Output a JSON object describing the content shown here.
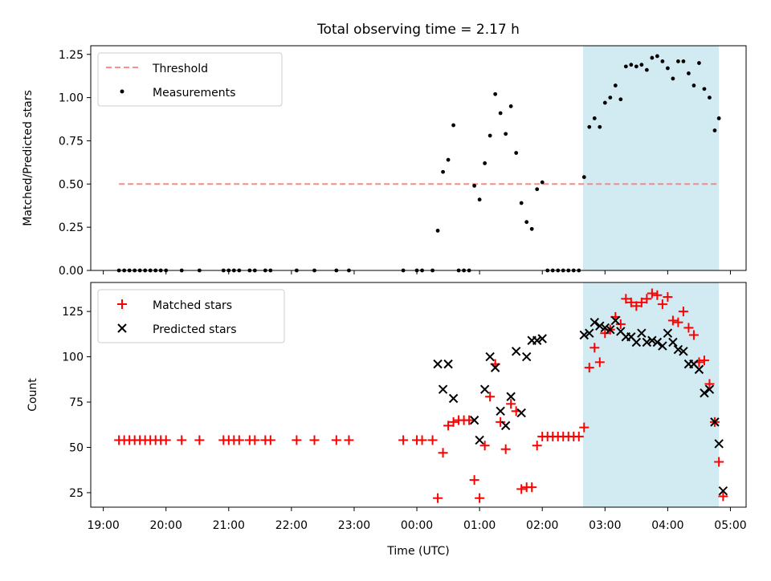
{
  "chart_data": {
    "type": "scatter",
    "title": "Total observing time = 2.17 h",
    "xlabel": "Time (UTC)",
    "x_ticks": [
      "19:00",
      "20:00",
      "21:00",
      "22:00",
      "23:00",
      "00:00",
      "01:00",
      "02:00",
      "03:00",
      "04:00",
      "05:00"
    ],
    "shaded_span": {
      "start": "02:39",
      "end": "04:49",
      "color": "#add8e6"
    },
    "panels": [
      {
        "ylabel": "Matched/Predicted stars",
        "ylim": [
          0,
          1.3
        ],
        "y_ticks": [
          "0.00",
          "0.25",
          "0.50",
          "0.75",
          "1.00",
          "1.25"
        ],
        "y_tick_values": [
          0,
          0.25,
          0.5,
          0.75,
          1.0,
          1.25
        ],
        "legend": {
          "placement": "upper-left",
          "entries": [
            {
              "label": "Threshold",
              "marker": "dashed-line",
              "color": "#ff7f7f"
            },
            {
              "label": "Measurements",
              "marker": "dot",
              "color": "#000000"
            }
          ]
        },
        "threshold": {
          "name": "Threshold",
          "value": 0.5,
          "x_range": [
            "19:15",
            "04:49"
          ],
          "style": "dashed",
          "color": "#ff7f7f"
        },
        "series": [
          {
            "name": "Measurements",
            "marker": "dot",
            "color": "#000000",
            "points": [
              [
                "19:15",
                0
              ],
              [
                "19:20",
                0
              ],
              [
                "19:25",
                0
              ],
              [
                "19:30",
                0
              ],
              [
                "19:35",
                0
              ],
              [
                "19:40",
                0
              ],
              [
                "19:45",
                0
              ],
              [
                "19:50",
                0
              ],
              [
                "19:55",
                0
              ],
              [
                "20:00",
                0
              ],
              [
                "20:15",
                0
              ],
              [
                "20:32",
                0
              ],
              [
                "20:55",
                0
              ],
              [
                "21:00",
                0
              ],
              [
                "21:05",
                0
              ],
              [
                "21:10",
                0
              ],
              [
                "21:20",
                0
              ],
              [
                "21:25",
                0
              ],
              [
                "21:35",
                0
              ],
              [
                "21:40",
                0
              ],
              [
                "22:05",
                0
              ],
              [
                "22:22",
                0
              ],
              [
                "22:43",
                0
              ],
              [
                "22:55",
                0
              ],
              [
                "23:47",
                0
              ],
              [
                "00:00",
                0
              ],
              [
                "00:05",
                0
              ],
              [
                "00:15",
                0
              ],
              [
                "00:20",
                0.23
              ],
              [
                "00:25",
                0.57
              ],
              [
                "00:30",
                0.64
              ],
              [
                "00:35",
                0.84
              ],
              [
                "00:40",
                0
              ],
              [
                "00:45",
                0
              ],
              [
                "00:50",
                0
              ],
              [
                "00:55",
                0.49
              ],
              [
                "01:00",
                0.41
              ],
              [
                "01:05",
                0.62
              ],
              [
                "01:10",
                0.78
              ],
              [
                "01:15",
                1.02
              ],
              [
                "01:20",
                0.91
              ],
              [
                "01:25",
                0.79
              ],
              [
                "01:30",
                0.95
              ],
              [
                "01:35",
                0.68
              ],
              [
                "01:40",
                0.39
              ],
              [
                "01:45",
                0.28
              ],
              [
                "01:50",
                0.24
              ],
              [
                "01:55",
                0.47
              ],
              [
                "02:00",
                0.51
              ],
              [
                "02:05",
                0
              ],
              [
                "02:10",
                0
              ],
              [
                "02:15",
                0
              ],
              [
                "02:20",
                0
              ],
              [
                "02:25",
                0
              ],
              [
                "02:30",
                0
              ],
              [
                "02:35",
                0
              ],
              [
                "02:40",
                0.54
              ],
              [
                "02:45",
                0.83
              ],
              [
                "02:50",
                0.88
              ],
              [
                "02:55",
                0.83
              ],
              [
                "03:00",
                0.97
              ],
              [
                "03:05",
                1.0
              ],
              [
                "03:10",
                1.07
              ],
              [
                "03:15",
                0.99
              ],
              [
                "03:20",
                1.18
              ],
              [
                "03:25",
                1.19
              ],
              [
                "03:30",
                1.18
              ],
              [
                "03:35",
                1.19
              ],
              [
                "03:40",
                1.16
              ],
              [
                "03:45",
                1.23
              ],
              [
                "03:50",
                1.24
              ],
              [
                "03:55",
                1.21
              ],
              [
                "04:00",
                1.17
              ],
              [
                "04:05",
                1.11
              ],
              [
                "04:10",
                1.21
              ],
              [
                "04:15",
                1.21
              ],
              [
                "04:20",
                1.14
              ],
              [
                "04:25",
                1.07
              ],
              [
                "04:30",
                1.2
              ],
              [
                "04:35",
                1.05
              ],
              [
                "04:40",
                1.0
              ],
              [
                "04:45",
                0.81
              ],
              [
                "04:49",
                0.88
              ]
            ]
          }
        ]
      },
      {
        "ylabel": "Count",
        "ylim": [
          17,
          141
        ],
        "y_ticks": [
          "25",
          "50",
          "75",
          "100",
          "125"
        ],
        "y_tick_values": [
          25,
          50,
          75,
          100,
          125
        ],
        "legend": {
          "placement": "upper-left",
          "entries": [
            {
              "label": "Matched stars",
              "marker": "plus",
              "color": "#ff0000"
            },
            {
              "label": "Predicted stars",
              "marker": "x",
              "color": "#000000"
            }
          ]
        },
        "series": [
          {
            "name": "Matched stars",
            "marker": "plus",
            "color": "#ff0000",
            "points": [
              [
                "19:15",
                54
              ],
              [
                "19:20",
                54
              ],
              [
                "19:25",
                54
              ],
              [
                "19:30",
                54
              ],
              [
                "19:35",
                54
              ],
              [
                "19:40",
                54
              ],
              [
                "19:45",
                54
              ],
              [
                "19:50",
                54
              ],
              [
                "19:55",
                54
              ],
              [
                "20:00",
                54
              ],
              [
                "20:15",
                54
              ],
              [
                "20:32",
                54
              ],
              [
                "20:55",
                54
              ],
              [
                "21:00",
                54
              ],
              [
                "21:05",
                54
              ],
              [
                "21:10",
                54
              ],
              [
                "21:20",
                54
              ],
              [
                "21:25",
                54
              ],
              [
                "21:35",
                54
              ],
              [
                "21:40",
                54
              ],
              [
                "22:05",
                54
              ],
              [
                "22:22",
                54
              ],
              [
                "22:43",
                54
              ],
              [
                "22:55",
                54
              ],
              [
                "23:47",
                54
              ],
              [
                "00:00",
                54
              ],
              [
                "00:05",
                54
              ],
              [
                "00:15",
                54
              ],
              [
                "00:20",
                22
              ],
              [
                "00:25",
                47
              ],
              [
                "00:30",
                62
              ],
              [
                "00:35",
                64
              ],
              [
                "00:40",
                65
              ],
              [
                "00:45",
                65
              ],
              [
                "00:50",
                65
              ],
              [
                "00:55",
                32
              ],
              [
                "01:00",
                22
              ],
              [
                "01:05",
                51
              ],
              [
                "01:10",
                78
              ],
              [
                "01:15",
                96
              ],
              [
                "01:20",
                64
              ],
              [
                "01:25",
                49
              ],
              [
                "01:30",
                74
              ],
              [
                "01:35",
                70
              ],
              [
                "01:40",
                27
              ],
              [
                "01:45",
                28
              ],
              [
                "01:50",
                28
              ],
              [
                "01:55",
                51
              ],
              [
                "02:00",
                56
              ],
              [
                "02:05",
                56
              ],
              [
                "02:10",
                56
              ],
              [
                "02:15",
                56
              ],
              [
                "02:20",
                56
              ],
              [
                "02:25",
                56
              ],
              [
                "02:30",
                56
              ],
              [
                "02:35",
                56
              ],
              [
                "02:40",
                61
              ],
              [
                "02:45",
                94
              ],
              [
                "02:50",
                105
              ],
              [
                "02:55",
                97
              ],
              [
                "03:00",
                113
              ],
              [
                "03:05",
                115
              ],
              [
                "03:10",
                122
              ],
              [
                "03:15",
                118
              ],
              [
                "03:20",
                132
              ],
              [
                "03:25",
                130
              ],
              [
                "03:30",
                128
              ],
              [
                "03:35",
                130
              ],
              [
                "03:40",
                132
              ],
              [
                "03:45",
                135
              ],
              [
                "03:50",
                134
              ],
              [
                "03:55",
                129
              ],
              [
                "04:00",
                133
              ],
              [
                "04:05",
                120
              ],
              [
                "04:10",
                119
              ],
              [
                "04:15",
                125
              ],
              [
                "04:20",
                116
              ],
              [
                "04:25",
                112
              ],
              [
                "04:30",
                97
              ],
              [
                "04:35",
                98
              ],
              [
                "04:40",
                85
              ],
              [
                "04:45",
                64
              ],
              [
                "04:49",
                42
              ],
              [
                "04:53",
                23
              ]
            ]
          },
          {
            "name": "Predicted stars",
            "marker": "x",
            "color": "#000000",
            "points": [
              [
                "00:20",
                96
              ],
              [
                "00:25",
                82
              ],
              [
                "00:30",
                96
              ],
              [
                "00:35",
                77
              ],
              [
                "00:55",
                65
              ],
              [
                "01:00",
                54
              ],
              [
                "01:05",
                82
              ],
              [
                "01:10",
                100
              ],
              [
                "01:15",
                94
              ],
              [
                "01:20",
                70
              ],
              [
                "01:25",
                62
              ],
              [
                "01:30",
                78
              ],
              [
                "01:35",
                103
              ],
              [
                "01:40",
                69
              ],
              [
                "01:45",
                100
              ],
              [
                "01:50",
                109
              ],
              [
                "01:55",
                109
              ],
              [
                "02:00",
                110
              ],
              [
                "02:40",
                112
              ],
              [
                "02:45",
                113
              ],
              [
                "02:50",
                119
              ],
              [
                "02:55",
                117
              ],
              [
                "03:00",
                116
              ],
              [
                "03:05",
                115
              ],
              [
                "03:10",
                120
              ],
              [
                "03:15",
                114
              ],
              [
                "03:20",
                111
              ],
              [
                "03:25",
                111
              ],
              [
                "03:30",
                108
              ],
              [
                "03:35",
                113
              ],
              [
                "03:40",
                108
              ],
              [
                "03:45",
                109
              ],
              [
                "03:50",
                108
              ],
              [
                "03:55",
                106
              ],
              [
                "04:00",
                113
              ],
              [
                "04:05",
                108
              ],
              [
                "04:10",
                104
              ],
              [
                "04:15",
                103
              ],
              [
                "04:20",
                96
              ],
              [
                "04:25",
                96
              ],
              [
                "04:30",
                93
              ],
              [
                "04:35",
                80
              ],
              [
                "04:40",
                82
              ],
              [
                "04:45",
                64
              ],
              [
                "04:49",
                52
              ],
              [
                "04:53",
                26
              ]
            ]
          }
        ]
      }
    ]
  }
}
